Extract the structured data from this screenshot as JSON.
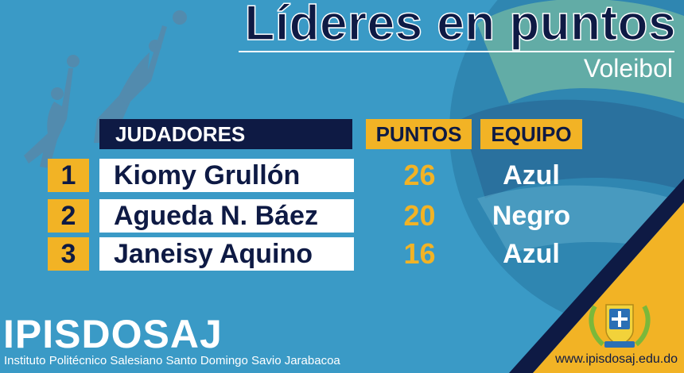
{
  "header": {
    "title": "Líderes en puntos",
    "subtitle": "Voleibol"
  },
  "table": {
    "columns": {
      "players": "JUDADORES",
      "points": "PUNTOS",
      "team": "EQUIPO"
    },
    "rows": [
      {
        "rank": "1",
        "name": "Kiomy Grullón",
        "points": "26",
        "team": "Azul"
      },
      {
        "rank": "2",
        "name": "Agueda N. Báez",
        "points": "20",
        "team": "Negro"
      },
      {
        "rank": "3",
        "name": "Janeisy Aquino",
        "points": "16",
        "team": "Azul"
      }
    ]
  },
  "footer": {
    "brand": "IPISDOSAJ",
    "institution": "Instituto Politécnico Salesiano Santo Domingo Savio Jarabacoa",
    "website": "www.ipisdosaj.edu.do"
  },
  "colors": {
    "background": "#3a9ac6",
    "navy": "#0e1a44",
    "gold": "#f2b325",
    "white": "#ffffff"
  },
  "icons": [
    "volleyball-players-silhouette",
    "volleyball-graphic",
    "school-crest-emblem"
  ]
}
